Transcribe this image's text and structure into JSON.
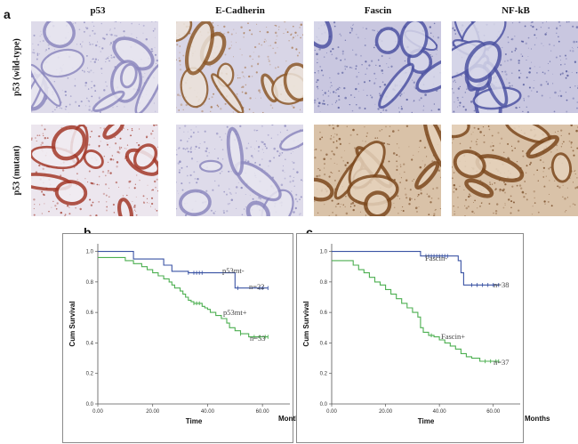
{
  "panel_a": {
    "letter": "a",
    "columns": [
      "p53",
      "E-Cadherin",
      "Fascin",
      "NF-kB"
    ],
    "rows": [
      "p53 (wild-type)",
      "p53 (mutant)"
    ],
    "tiles": [
      [
        {
          "stain": "blue-weak"
        },
        {
          "stain": "brown-membrane"
        },
        {
          "stain": "blue-strong"
        },
        {
          "stain": "blue-strong"
        }
      ],
      [
        {
          "stain": "red-nuclear"
        },
        {
          "stain": "blue-weak"
        },
        {
          "stain": "brown-strong"
        },
        {
          "stain": "brown-strong"
        }
      ]
    ],
    "colors": {
      "hematoxylin": "#6a6fb3",
      "dab": "#9a5a2a",
      "pale_bg": "#d9d6e8"
    }
  },
  "chart_data": [
    {
      "type": "line",
      "panel": "b",
      "xlabel": "Time",
      "x_unit": "Months",
      "ylabel": "Cum Survival",
      "xlim": [
        0,
        70
      ],
      "ylim": [
        0,
        1.05
      ],
      "xticks": [
        "0.00",
        "20.00",
        "40.00",
        "60.00"
      ],
      "xtick_values": [
        0,
        20,
        40,
        60
      ],
      "yticks": [
        "0.0",
        "0.2",
        "0.4",
        "0.6",
        "0.8",
        "1.0"
      ],
      "ytick_values": [
        0,
        0.2,
        0.4,
        0.6,
        0.8,
        1.0
      ],
      "series": [
        {
          "name": "p53mt-",
          "n_label": "n=22",
          "color": "#3a53a4",
          "x": [
            0,
            6,
            13,
            22,
            24,
            27,
            32,
            33,
            35,
            36,
            37,
            38,
            48,
            50,
            51,
            59,
            60,
            62
          ],
          "y": [
            1.0,
            1.0,
            0.95,
            0.95,
            0.91,
            0.87,
            0.87,
            0.86,
            0.86,
            0.86,
            0.86,
            0.86,
            0.86,
            0.76,
            0.76,
            0.76,
            0.76,
            0.76
          ],
          "censored_x": [
            33,
            35,
            36,
            37,
            38,
            51,
            59,
            60,
            62
          ]
        },
        {
          "name": "p53mt+",
          "n_label": "n=53",
          "color": "#4caf50",
          "x": [
            0,
            6,
            10,
            13,
            16,
            18,
            20,
            22,
            24,
            26,
            27,
            28,
            30,
            31,
            32,
            33,
            34,
            35,
            36,
            37,
            38,
            39,
            40,
            41,
            43,
            45,
            47,
            48,
            50,
            52,
            55,
            57,
            59,
            61,
            62
          ],
          "y": [
            0.96,
            0.96,
            0.94,
            0.92,
            0.9,
            0.88,
            0.86,
            0.84,
            0.82,
            0.8,
            0.78,
            0.76,
            0.74,
            0.72,
            0.7,
            0.68,
            0.67,
            0.66,
            0.66,
            0.66,
            0.64,
            0.63,
            0.62,
            0.6,
            0.58,
            0.56,
            0.53,
            0.5,
            0.48,
            0.46,
            0.44,
            0.44,
            0.44,
            0.44,
            0.44
          ],
          "censored_x": [
            35,
            36,
            37,
            52,
            57,
            59,
            61,
            62
          ]
        }
      ]
    },
    {
      "type": "line",
      "panel": "c",
      "xlabel": "Time",
      "x_unit": "Months",
      "ylabel": "Cum Survival",
      "xlim": [
        0,
        70
      ],
      "ylim": [
        0,
        1.05
      ],
      "xticks": [
        "0.00",
        "20.00",
        "40.00",
        "60.00"
      ],
      "xtick_values": [
        0,
        20,
        40,
        60
      ],
      "yticks": [
        "0.0",
        "0.2",
        "0.4",
        "0.6",
        "0.8",
        "1.0"
      ],
      "ytick_values": [
        0,
        0.2,
        0.4,
        0.6,
        0.8,
        1.0
      ],
      "series": [
        {
          "name": "Fascin-",
          "n_label": "n=38",
          "color": "#3a53a4",
          "x": [
            0,
            6,
            30,
            33,
            35,
            36,
            37,
            38,
            39,
            40,
            41,
            42,
            43,
            47,
            48,
            49,
            50,
            52,
            54,
            56,
            58,
            60,
            62
          ],
          "y": [
            1.0,
            1.0,
            1.0,
            0.97,
            0.97,
            0.97,
            0.97,
            0.97,
            0.97,
            0.97,
            0.97,
            0.97,
            0.97,
            0.94,
            0.86,
            0.78,
            0.78,
            0.78,
            0.78,
            0.78,
            0.78,
            0.78,
            0.78
          ],
          "censored_x": [
            35,
            36,
            37,
            38,
            39,
            40,
            41,
            42,
            43,
            52,
            54,
            56,
            58,
            60,
            62
          ]
        },
        {
          "name": "Fascin+",
          "n_label": "n=37",
          "color": "#4caf50",
          "x": [
            0,
            6,
            8,
            10,
            12,
            14,
            16,
            18,
            20,
            22,
            24,
            26,
            28,
            30,
            32,
            33,
            34,
            36,
            37,
            38,
            40,
            42,
            44,
            46,
            48,
            50,
            52,
            55,
            57,
            59,
            61,
            62
          ],
          "y": [
            0.94,
            0.94,
            0.91,
            0.88,
            0.86,
            0.83,
            0.8,
            0.78,
            0.75,
            0.72,
            0.69,
            0.66,
            0.63,
            0.6,
            0.57,
            0.5,
            0.47,
            0.45,
            0.45,
            0.44,
            0.42,
            0.4,
            0.38,
            0.36,
            0.33,
            0.31,
            0.3,
            0.28,
            0.28,
            0.28,
            0.28,
            0.28
          ],
          "censored_x": [
            37,
            57,
            59,
            61,
            62
          ]
        }
      ]
    }
  ]
}
